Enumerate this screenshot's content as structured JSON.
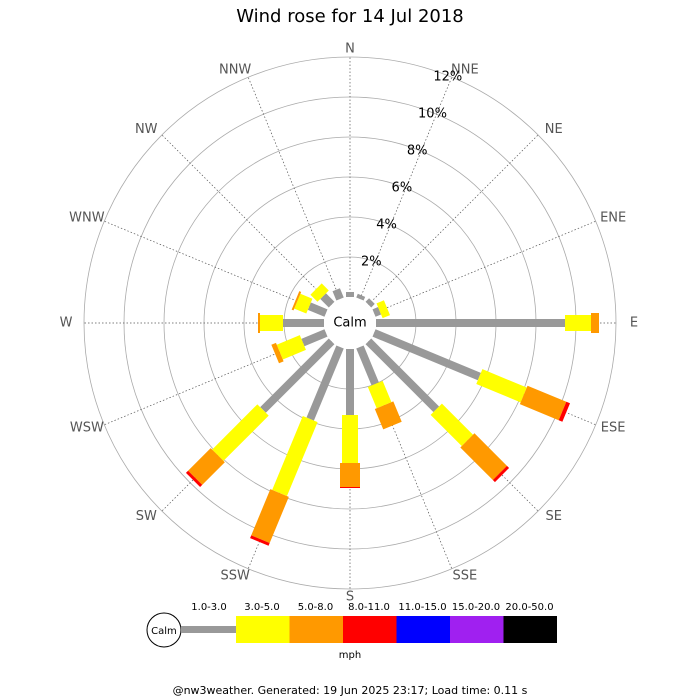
{
  "chart_data": {
    "type": "windrose",
    "title": "Wind rose for 14 Jul 2018",
    "center_label": "Calm",
    "legend_calm_label": "Calm",
    "unit": "mph",
    "footer": "@nw3weather. Generated: 19 Jun 2025 23:17; Load time: 0.11 s",
    "categories": [
      "N",
      "NNE",
      "NE",
      "ENE",
      "E",
      "ESE",
      "SE",
      "SSE",
      "S",
      "SSW",
      "SW",
      "WSW",
      "W",
      "WNW",
      "NW",
      "NNW"
    ],
    "rlim": [
      0,
      12
    ],
    "rticks": [
      {
        "value": 2,
        "label": "2%"
      },
      {
        "value": 4,
        "label": "4%"
      },
      {
        "value": 6,
        "label": "6%"
      },
      {
        "value": 8,
        "label": "8%"
      },
      {
        "value": 10,
        "label": "10%"
      },
      {
        "value": 12,
        "label": "12%"
      }
    ],
    "series": [
      {
        "name": "1.0-3.0",
        "color": "#999999",
        "values": [
          0.25,
          0.2,
          0.25,
          0.3,
          9.45,
          5.7,
          4.8,
          2.0,
          3.3,
          3.9,
          4.85,
          1.25,
          2.05,
          0.9,
          0.6,
          0.5
        ]
      },
      {
        "name": "3.0-5.0",
        "color": "#ffff00",
        "values": [
          0,
          0,
          0,
          0.4,
          1.3,
          2.4,
          2.2,
          1.15,
          2.4,
          4.0,
          3.2,
          1.25,
          1.15,
          0.65,
          0.5,
          0
        ]
      },
      {
        "name": "5.0-8.0",
        "color": "#ff9900",
        "values": [
          0,
          0,
          0,
          0,
          0.4,
          2.1,
          2.3,
          1.1,
          1.2,
          2.5,
          1.6,
          0.25,
          0.1,
          0.1,
          0,
          0
        ]
      },
      {
        "name": "8.0-11.0",
        "color": "#ff0000",
        "values": [
          0,
          0,
          0,
          0,
          0,
          0.2,
          0.15,
          0,
          0.05,
          0.15,
          0.15,
          0,
          0,
          0,
          0,
          0
        ]
      },
      {
        "name": "11.0-15.0",
        "color": "#0000ff",
        "values": [
          0,
          0,
          0,
          0,
          0,
          0,
          0,
          0,
          0,
          0,
          0,
          0,
          0,
          0,
          0,
          0
        ]
      },
      {
        "name": "15.0-20.0",
        "color": "#a020f0",
        "values": [
          0,
          0,
          0,
          0,
          0,
          0,
          0,
          0,
          0,
          0,
          0,
          0,
          0,
          0,
          0,
          0
        ]
      },
      {
        "name": "20.0-50.0",
        "color": "#000000",
        "values": [
          0,
          0,
          0,
          0,
          0,
          0,
          0,
          0,
          0,
          0,
          0,
          0,
          0,
          0,
          0,
          0
        ]
      }
    ]
  }
}
